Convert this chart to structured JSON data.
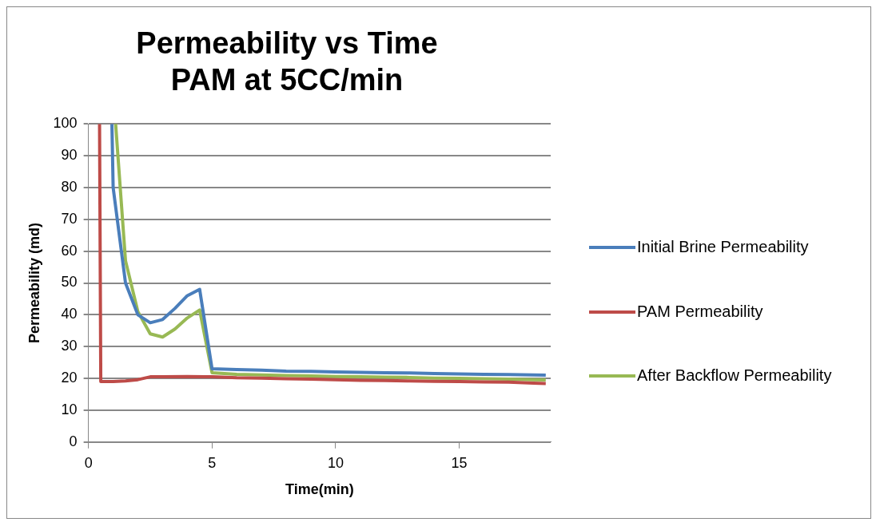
{
  "chart_data": {
    "type": "line",
    "title": [
      "Permeability vs Time",
      "PAM at 5CC/min"
    ],
    "xlabel": "Time(min)",
    "ylabel": "Permeability (md)",
    "xlim": [
      0,
      18.7
    ],
    "xticks": [
      0,
      5,
      10,
      15
    ],
    "ylim": [
      0,
      100
    ],
    "yticks": [
      0,
      10,
      20,
      30,
      40,
      50,
      60,
      70,
      80,
      90,
      100
    ],
    "grid": "y",
    "legend": "right",
    "marker": "none",
    "line_style": "solid",
    "series": [
      {
        "name": "Initial Brine Permeability",
        "color": "#4a7ebb",
        "x": [
          0.95,
          1,
          1.5,
          2,
          2.5,
          3,
          3.5,
          4,
          4.5,
          5,
          6,
          7,
          8,
          9,
          10,
          11,
          12,
          13,
          14,
          15,
          16,
          17,
          18,
          18.5
        ],
        "values": [
          100,
          80,
          50,
          40,
          37.5,
          38.5,
          42,
          46,
          48,
          23,
          22.8,
          22.6,
          22.3,
          22.2,
          22,
          21.9,
          21.8,
          21.7,
          21.5,
          21.4,
          21.3,
          21.2,
          21.1,
          21
        ]
      },
      {
        "name": "PAM Permeability",
        "color": "#be4b48",
        "x": [
          0.45,
          0.5,
          1,
          1.5,
          2,
          2.5,
          3,
          4,
          5,
          6,
          7,
          8,
          9,
          10,
          11,
          12,
          13,
          14,
          15,
          16,
          17,
          18,
          18.5
        ],
        "values": [
          100,
          19,
          19,
          19.2,
          19.6,
          20.5,
          20.5,
          20.6,
          20.5,
          20.2,
          20.1,
          19.9,
          19.8,
          19.6,
          19.4,
          19.3,
          19.2,
          19.1,
          19,
          18.9,
          18.8,
          18.5,
          18.4
        ]
      },
      {
        "name": "After Backflow Permeability",
        "color": "#98b954",
        "x": [
          1.1,
          1.5,
          2,
          2.5,
          3,
          3.5,
          4,
          4.5,
          5,
          6,
          7,
          8,
          9,
          10,
          11,
          12,
          13,
          14,
          15,
          16,
          17,
          18,
          18.5
        ],
        "values": [
          100,
          57,
          41,
          34,
          33,
          35.5,
          39,
          41.5,
          21.8,
          21.3,
          21.1,
          20.9,
          20.8,
          20.6,
          20.5,
          20.4,
          20.3,
          20.1,
          20,
          19.9,
          19.8,
          19.6,
          19.5
        ]
      }
    ]
  }
}
